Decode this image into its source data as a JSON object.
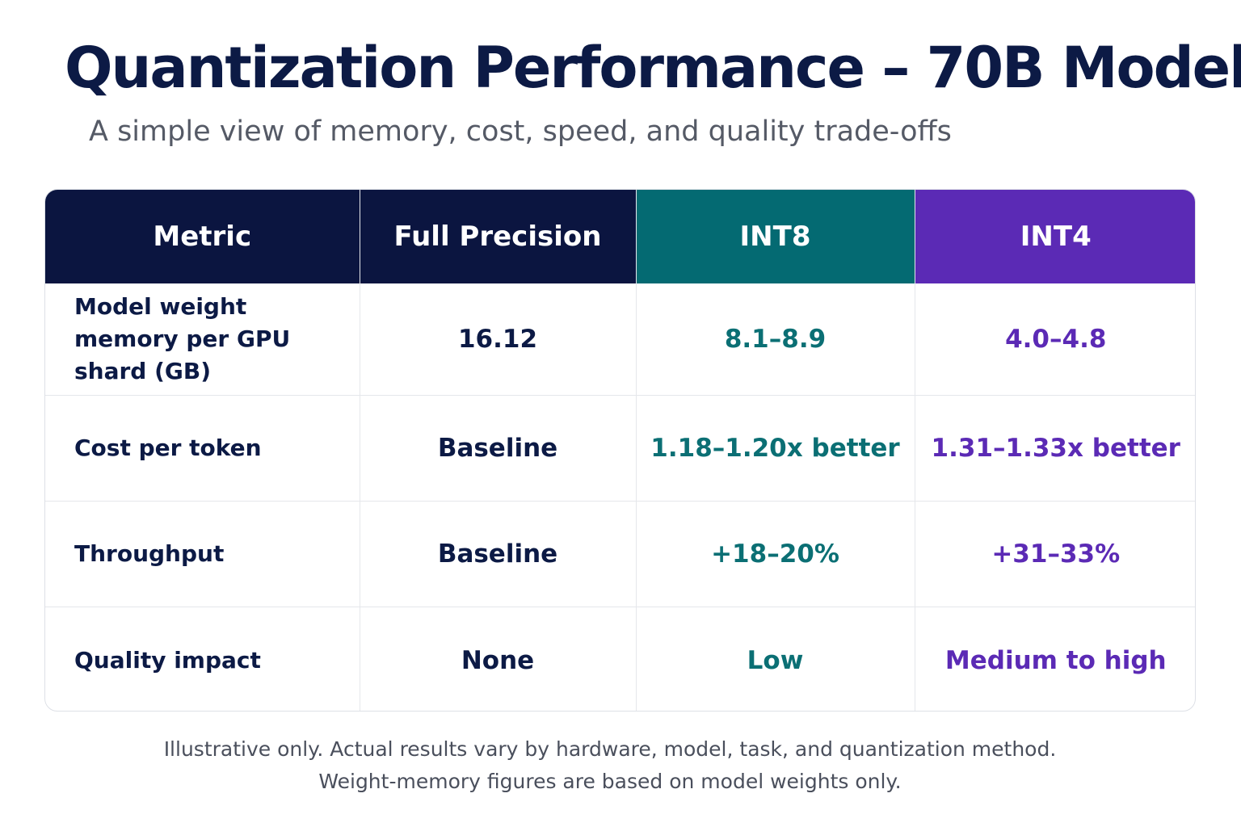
{
  "header": {
    "title": "Quantization Performance – 70B Model",
    "subtitle": "A simple view of memory, cost, speed, and quality trade-offs"
  },
  "table": {
    "columns": [
      "Metric",
      "Full Precision",
      "INT8",
      "INT4"
    ],
    "rows": [
      [
        "Model weight memory per GPU shard (GB)",
        "16.12",
        "8.1–8.9",
        "4.0–4.8"
      ],
      [
        "Cost per token",
        "Baseline",
        "1.18–1.20x better",
        "1.31–1.33x better"
      ],
      [
        "Throughput",
        "Baseline",
        "+18–20%",
        "+31–33%"
      ],
      [
        "Quality impact",
        "None",
        "Low",
        "Medium to high"
      ]
    ]
  },
  "footnote": {
    "line1": "Illustrative only. Actual results vary by hardware, model, task, and quantization method.",
    "line2": "Weight-memory figures are based on model weights only."
  },
  "colors": {
    "navy": "#0b1540",
    "teal": "#046a72",
    "purple": "#5b2ab5",
    "title_text": "#0c1a45"
  }
}
